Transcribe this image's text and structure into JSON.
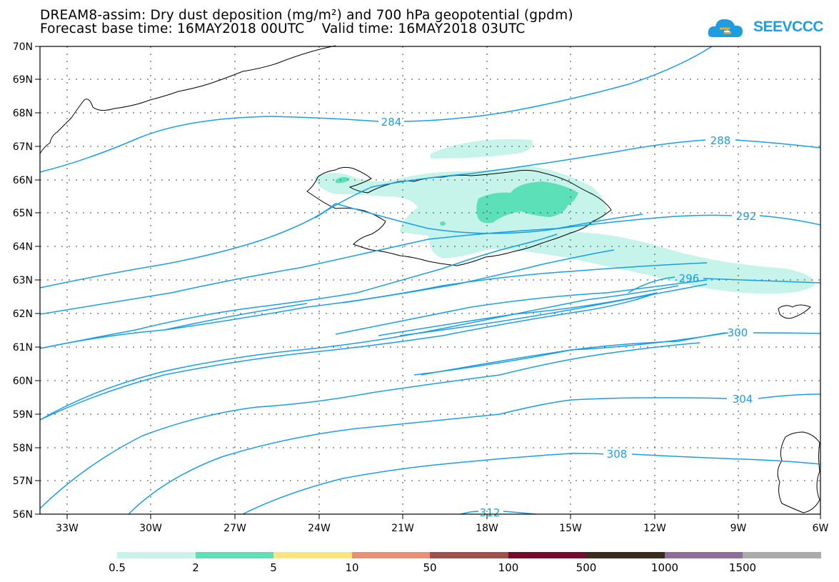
{
  "title": {
    "line1": "DREAM8-assim: Dry dust deposition (mg/m²) and 700 hPa geopotential (gpdm)",
    "line2": "Forecast base time: 16MAY2018 00UTC    Valid time: 16MAY2018 03UTC"
  },
  "logo": {
    "text": "SEEVCCC",
    "icon": "cloud-icon",
    "color": "#1e9ee0"
  },
  "axes": {
    "lat_labels": [
      "70N",
      "69N",
      "68N",
      "67N",
      "66N",
      "65N",
      "64N",
      "63N",
      "62N",
      "61N",
      "60N",
      "59N",
      "58N",
      "57N",
      "56N"
    ],
    "lon_labels": [
      "33W",
      "30W",
      "27W",
      "24W",
      "21W",
      "18W",
      "15W",
      "12W",
      "9W",
      "6W"
    ],
    "lon_range": [
      -34,
      -6
    ],
    "lat_range": [
      56,
      70
    ],
    "grid": "dotted"
  },
  "contours": {
    "color": "#1a9ee6",
    "labels": [
      "284",
      "288",
      "292",
      "296",
      "300",
      "304",
      "308",
      "312"
    ]
  },
  "legend": {
    "labels": [
      "0.5",
      "2",
      "5",
      "10",
      "50",
      "100",
      "500",
      "1000",
      "1500"
    ],
    "colors": [
      "#c6f3ea",
      "#5ce0b8",
      "#f9e779",
      "#e99070",
      "#a0504a",
      "#7a0a2c",
      "#3b2a1e",
      "#8c6e98",
      "#ababab"
    ]
  },
  "chart_data": {
    "type": "heatmap",
    "title": "DREAM8-assim: Dry dust deposition (mg/m²) and 700 hPa geopotential (gpdm)",
    "xlabel": "",
    "ylabel": "",
    "xlim": [
      -34,
      -6
    ],
    "ylim": [
      56,
      70
    ],
    "contour_levels": [
      284,
      288,
      292,
      296,
      300,
      304,
      308,
      312
    ],
    "color_scale_breaks": [
      0.5,
      2,
      5,
      10,
      50,
      100,
      500,
      1000,
      1500
    ]
  }
}
